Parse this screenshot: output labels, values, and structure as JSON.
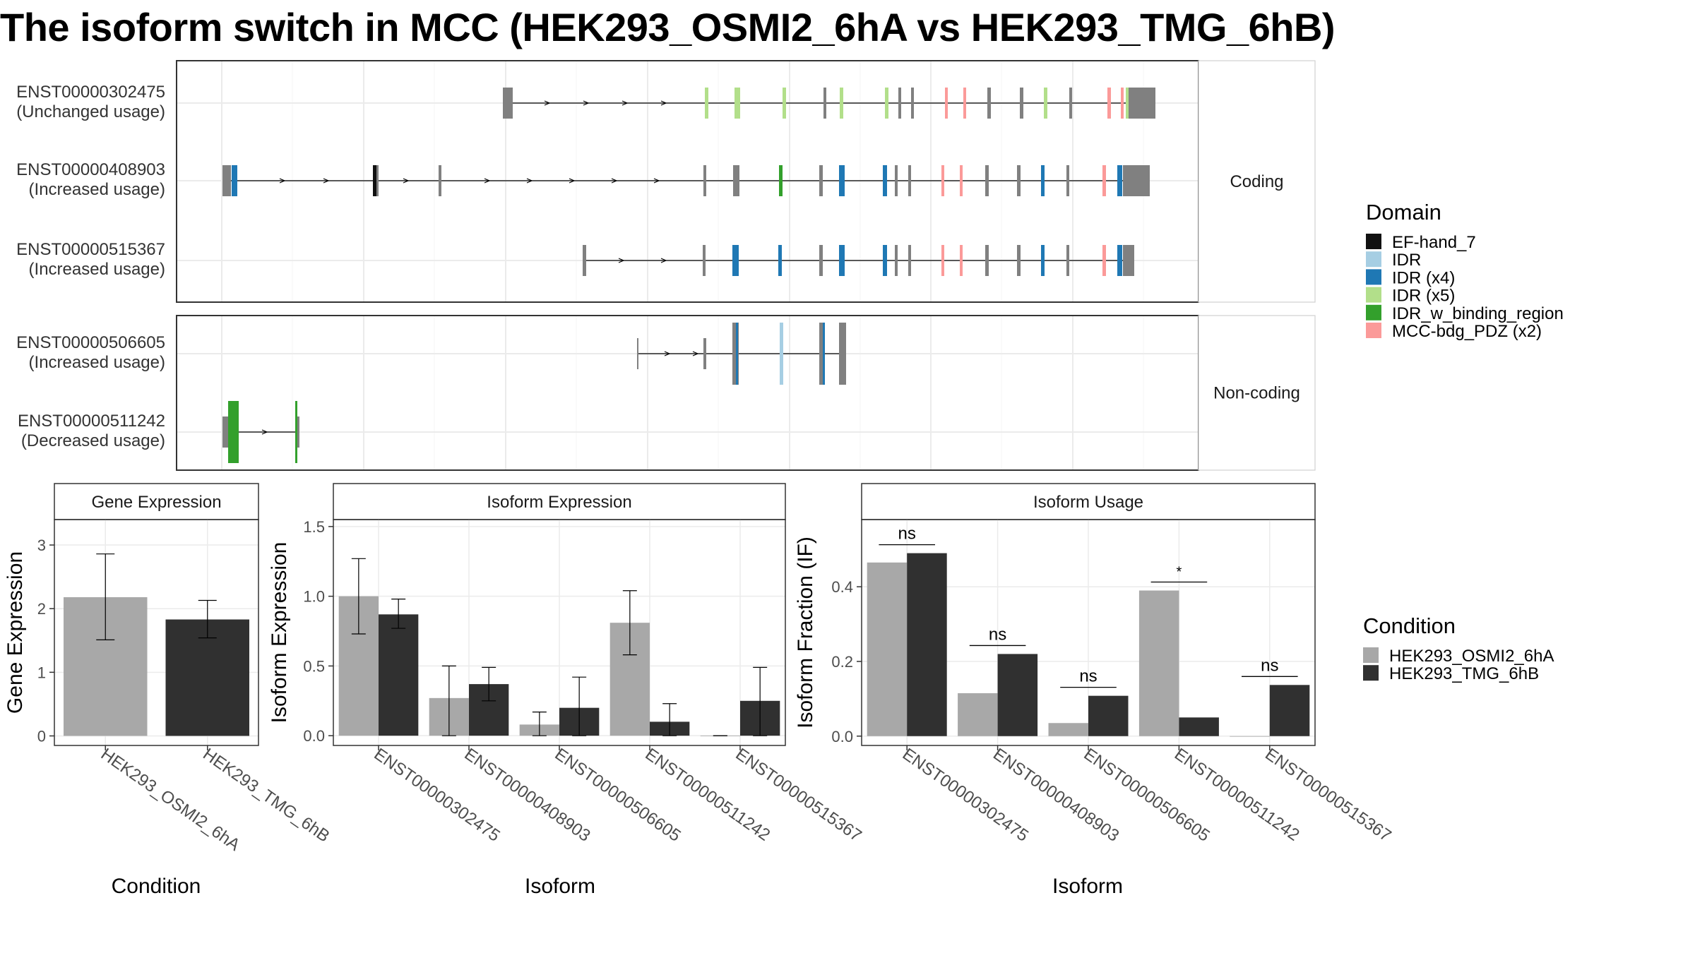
{
  "title": "The isoform switch in MCC (HEK293_OSMI2_6hA vs HEK293_TMG_6hB)",
  "colors": {
    "EF-hand_7": "#111111",
    "IDR": "#a6cee3",
    "IDR (x4)": "#1f78b4",
    "IDR (x5)": "#b2df8a",
    "IDR_w_binding_region": "#33a02c",
    "MCC-bdg_PDZ (x2)": "#fb9a99",
    "exon": "#808080",
    "cond_A": "#a8a8a8",
    "cond_B": "#303030"
  },
  "chart_data": [
    {
      "type": "gene_structure",
      "facets": [
        "Coding",
        "Non-coding"
      ],
      "transcripts": [
        {
          "id": "ENST00000302475",
          "usage": "(Unchanged usage)",
          "facet": "Coding"
        },
        {
          "id": "ENST00000408903",
          "usage": "(Increased usage)",
          "facet": "Coding"
        },
        {
          "id": "ENST00000515367",
          "usage": "(Increased usage)",
          "facet": "Coding"
        },
        {
          "id": "ENST00000506605",
          "usage": "(Increased usage)",
          "facet": "Non-coding"
        },
        {
          "id": "ENST00000511242",
          "usage": "(Decreased usage)",
          "facet": "Non-coding"
        }
      ],
      "legend_title": "Domain",
      "legend": [
        "EF-hand_7",
        "IDR",
        "IDR (x4)",
        "IDR (x5)",
        "IDR_w_binding_region",
        "MCC-bdg_PDZ (x2)"
      ],
      "legend_placement": "right"
    },
    {
      "type": "bar",
      "panel_title": "Gene Expression",
      "xlabel": "Condition",
      "ylabel": "Gene Expression",
      "categories": [
        "HEK293_OSMI2_6hA",
        "HEK293_TMG_6hB"
      ],
      "values": [
        2.18,
        1.83
      ],
      "error_low": [
        1.51,
        1.54
      ],
      "error_high": [
        2.86,
        2.13
      ],
      "ylim": [
        -0.15,
        3.4
      ],
      "yticks": [
        "0",
        "1",
        "2",
        "3"
      ]
    },
    {
      "type": "bar",
      "panel_title": "Isoform Expression",
      "xlabel": "Isoform",
      "ylabel": "Isoform Expression",
      "categories": [
        "ENST00000302475",
        "ENST00000408903",
        "ENST00000506605",
        "ENST00000511242",
        "ENST00000515367"
      ],
      "series": [
        {
          "name": "HEK293_OSMI2_6hA",
          "values": [
            1.0,
            0.27,
            0.08,
            0.81,
            0.0
          ],
          "error_low": [
            0.73,
            0.0,
            0.0,
            0.58,
            0.0
          ],
          "error_high": [
            1.27,
            0.5,
            0.17,
            1.04,
            0.0
          ]
        },
        {
          "name": "HEK293_TMG_6hB",
          "values": [
            0.87,
            0.37,
            0.2,
            0.1,
            0.25
          ],
          "error_low": [
            0.77,
            0.25,
            0.0,
            0.0,
            0.0
          ],
          "error_high": [
            0.98,
            0.49,
            0.42,
            0.23,
            0.49
          ]
        }
      ],
      "ylim": [
        -0.07,
        1.55
      ],
      "yticks": [
        "0.0",
        "0.5",
        "1.0",
        "1.5"
      ]
    },
    {
      "type": "bar",
      "panel_title": "Isoform Usage",
      "xlabel": "Isoform",
      "ylabel": "Isoform Fraction (IF)",
      "categories": [
        "ENST00000302475",
        "ENST00000408903",
        "ENST00000506605",
        "ENST00000511242",
        "ENST00000515367"
      ],
      "series": [
        {
          "name": "HEK293_OSMI2_6hA",
          "values": [
            0.465,
            0.115,
            0.035,
            0.39,
            0.0
          ]
        },
        {
          "name": "HEK293_TMG_6hB",
          "values": [
            0.49,
            0.22,
            0.108,
            0.05,
            0.137
          ]
        }
      ],
      "significance": [
        "ns",
        "ns",
        "ns",
        "*",
        "ns"
      ],
      "ylim": [
        -0.025,
        0.58
      ],
      "yticks": [
        "0.0",
        "0.2",
        "0.4"
      ],
      "legend_title": "Condition",
      "legend": [
        "HEK293_OSMI2_6hA",
        "HEK293_TMG_6hB"
      ],
      "legend_placement": "right"
    }
  ]
}
